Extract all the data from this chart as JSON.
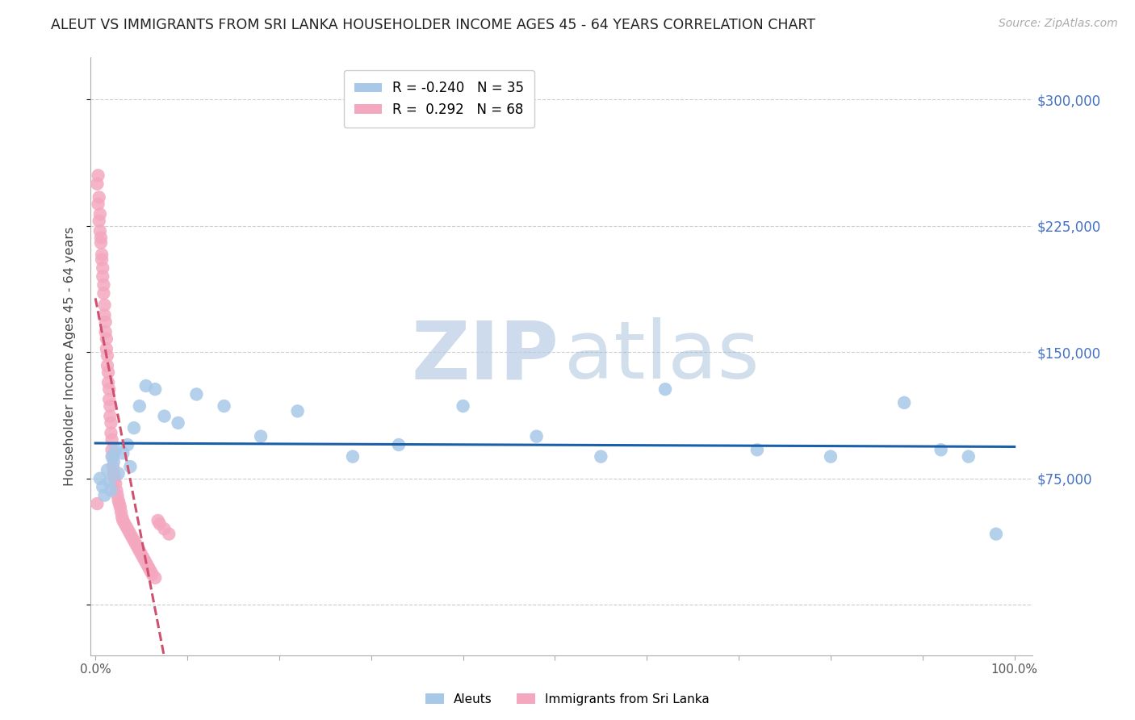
{
  "title": "ALEUT VS IMMIGRANTS FROM SRI LANKA HOUSEHOLDER INCOME AGES 45 - 64 YEARS CORRELATION CHART",
  "source": "Source: ZipAtlas.com",
  "ylabel": "Householder Income Ages 45 - 64 years",
  "aleuts_R": -0.24,
  "aleuts_N": 35,
  "srilanka_R": 0.292,
  "srilanka_N": 68,
  "aleuts_color": "#a8c8e8",
  "srilanka_color": "#f4a8c0",
  "aleuts_line_color": "#1a5fa8",
  "srilanka_line_color": "#d05070",
  "ytick_values": [
    0,
    75000,
    150000,
    225000,
    300000
  ],
  "ytick_labels_right": [
    "",
    "$75,000",
    "$150,000",
    "$225,000",
    "$300,000"
  ],
  "ymax": 325000,
  "ymin": -30000,
  "xmin": -0.005,
  "xmax": 1.02,
  "xtick_values": [
    0.0,
    0.1,
    0.2,
    0.3,
    0.4,
    0.5,
    0.6,
    0.7,
    0.8,
    0.9,
    1.0
  ],
  "xtick_labels": [
    "0.0%",
    "",
    "",
    "",
    "",
    "",
    "",
    "",
    "",
    "",
    "100.0%"
  ],
  "aleuts_x": [
    0.005,
    0.008,
    0.01,
    0.013,
    0.015,
    0.017,
    0.018,
    0.02,
    0.022,
    0.025,
    0.03,
    0.035,
    0.038,
    0.042,
    0.048,
    0.055,
    0.065,
    0.075,
    0.09,
    0.11,
    0.14,
    0.18,
    0.22,
    0.28,
    0.33,
    0.4,
    0.48,
    0.55,
    0.62,
    0.72,
    0.8,
    0.88,
    0.92,
    0.95,
    0.98
  ],
  "aleuts_y": [
    75000,
    70000,
    65000,
    80000,
    73000,
    68000,
    88000,
    85000,
    92000,
    78000,
    90000,
    95000,
    82000,
    105000,
    118000,
    130000,
    128000,
    112000,
    108000,
    125000,
    118000,
    100000,
    115000,
    88000,
    95000,
    118000,
    100000,
    88000,
    128000,
    92000,
    88000,
    120000,
    92000,
    88000,
    42000
  ],
  "srilanka_x": [
    0.002,
    0.003,
    0.003,
    0.004,
    0.004,
    0.005,
    0.005,
    0.006,
    0.006,
    0.007,
    0.007,
    0.008,
    0.008,
    0.009,
    0.009,
    0.01,
    0.01,
    0.011,
    0.011,
    0.012,
    0.012,
    0.013,
    0.013,
    0.014,
    0.014,
    0.015,
    0.015,
    0.016,
    0.016,
    0.017,
    0.017,
    0.018,
    0.018,
    0.019,
    0.019,
    0.02,
    0.021,
    0.022,
    0.023,
    0.024,
    0.025,
    0.026,
    0.027,
    0.028,
    0.029,
    0.03,
    0.032,
    0.034,
    0.036,
    0.038,
    0.04,
    0.042,
    0.044,
    0.046,
    0.048,
    0.05,
    0.052,
    0.054,
    0.056,
    0.058,
    0.06,
    0.062,
    0.065,
    0.068,
    0.07,
    0.075,
    0.08,
    0.002
  ],
  "srilanka_y": [
    250000,
    255000,
    238000,
    242000,
    228000,
    232000,
    222000,
    218000,
    215000,
    208000,
    205000,
    200000,
    195000,
    190000,
    185000,
    178000,
    172000,
    168000,
    162000,
    158000,
    152000,
    148000,
    142000,
    138000,
    132000,
    128000,
    122000,
    118000,
    112000,
    108000,
    102000,
    98000,
    92000,
    88000,
    82000,
    78000,
    75000,
    72000,
    68000,
    65000,
    62000,
    60000,
    58000,
    55000,
    52000,
    50000,
    48000,
    46000,
    44000,
    42000,
    40000,
    38000,
    36000,
    34000,
    32000,
    30000,
    28000,
    26000,
    24000,
    22000,
    20000,
    18000,
    16000,
    50000,
    48000,
    45000,
    42000,
    60000
  ]
}
